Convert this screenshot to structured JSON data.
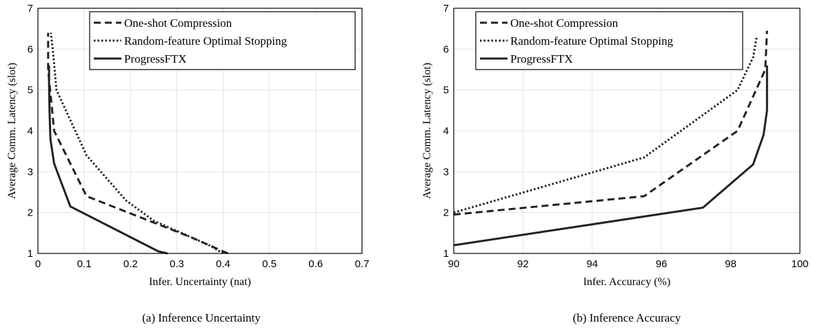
{
  "chart_data": [
    {
      "type": "line",
      "caption": "(a) Inference Uncertainty",
      "xlabel": "Infer. Uncertainty (nat)",
      "ylabel": "Average Comm. Latency (slot)",
      "xlim": [
        0,
        0.7
      ],
      "ylim": [
        1,
        7
      ],
      "xticks": [
        0,
        0.1,
        0.2,
        0.3,
        0.4,
        0.5,
        0.6,
        0.7
      ],
      "yticks": [
        1,
        2,
        3,
        4,
        5,
        6,
        7
      ],
      "grid": true,
      "legend_position": "top-right",
      "series": [
        {
          "name": "One-shot Compression",
          "style": "dashed",
          "x": [
            0.41,
            0.33,
            0.24,
            0.105,
            0.035,
            0.022,
            0.022
          ],
          "y": [
            1.0,
            1.4,
            1.8,
            2.4,
            4.0,
            5.5,
            6.4
          ]
        },
        {
          "name": "Random-feature Optimal Stopping",
          "style": "dotted",
          "x": [
            0.4,
            0.37,
            0.31,
            0.25,
            0.19,
            0.105,
            0.04,
            0.032,
            0.028
          ],
          "y": [
            1.0,
            1.2,
            1.5,
            1.8,
            2.3,
            3.4,
            5.0,
            6.0,
            6.4
          ]
        },
        {
          "name": "ProgressFTX",
          "style": "solid",
          "x": [
            0.28,
            0.26,
            0.07,
            0.035,
            0.027,
            0.025,
            0.024,
            0.024
          ],
          "y": [
            1.0,
            1.05,
            2.15,
            3.2,
            3.8,
            4.5,
            5.2,
            5.6
          ]
        }
      ]
    },
    {
      "type": "line",
      "caption": "(b) Inference Accuracy",
      "xlabel": "Infer. Accuracy (%)",
      "ylabel": "Average Comm. Latency (slot)",
      "xlim": [
        90,
        100
      ],
      "ylim": [
        1,
        7
      ],
      "xticks": [
        90,
        92,
        94,
        96,
        98,
        100
      ],
      "yticks": [
        1,
        2,
        3,
        4,
        5,
        6,
        7
      ],
      "grid": true,
      "legend_position": "top-left",
      "series": [
        {
          "name": "One-shot Compression",
          "style": "dashed",
          "x": [
            90.0,
            95.5,
            98.2,
            99.0,
            99.05
          ],
          "y": [
            1.95,
            2.4,
            4.0,
            5.5,
            6.45
          ]
        },
        {
          "name": "Random-feature Optimal Stopping",
          "style": "dotted",
          "x": [
            90.0,
            95.5,
            98.2,
            98.65,
            98.75
          ],
          "y": [
            2.0,
            3.35,
            5.0,
            5.8,
            6.3
          ]
        },
        {
          "name": "ProgressFTX",
          "style": "solid",
          "x": [
            90.0,
            97.2,
            98.65,
            98.95,
            99.0,
            99.05,
            99.05
          ],
          "y": [
            1.2,
            2.12,
            3.18,
            3.9,
            4.2,
            4.5,
            5.6
          ]
        }
      ]
    }
  ]
}
